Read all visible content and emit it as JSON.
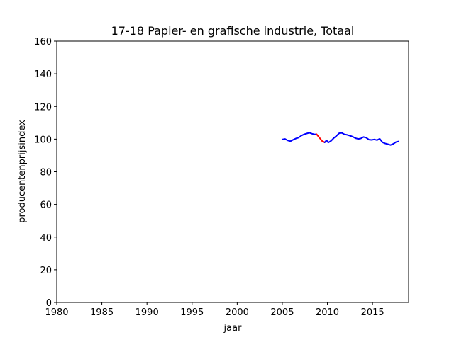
{
  "chart_data": {
    "type": "line",
    "title": "17-18 Papier- en grafische industrie, Totaal",
    "xlabel": "jaar",
    "ylabel": "producentenprijsindex",
    "xlim": [
      1980,
      2019
    ],
    "ylim": [
      0,
      160
    ],
    "xticks": [
      1980,
      1985,
      1990,
      1995,
      2000,
      2005,
      2010,
      2015
    ],
    "yticks": [
      0,
      20,
      40,
      60,
      80,
      100,
      120,
      140,
      160
    ],
    "grid": false,
    "series": [
      {
        "color": "#0000ff",
        "x": [
          2005.0,
          2005.3,
          2005.6,
          2005.9,
          2006.2,
          2006.5,
          2006.8,
          2007.1,
          2007.4,
          2007.7,
          2008.0,
          2008.3,
          2008.6,
          2008.8
        ],
        "y": [
          99.8,
          100.1,
          99.2,
          98.7,
          99.6,
          100.4,
          100.9,
          102.1,
          102.9,
          103.4,
          103.9,
          103.3,
          102.9,
          103.0
        ]
      },
      {
        "color": "#ff0000",
        "x": [
          2008.8,
          2009.1,
          2009.4,
          2009.7
        ],
        "y": [
          103.0,
          101.0,
          98.9,
          98.0
        ]
      },
      {
        "color": "#0000ff",
        "x": [
          2009.7,
          2009.9,
          2010.1,
          2010.4,
          2010.7,
          2011.0,
          2011.3,
          2011.6,
          2011.9,
          2012.2,
          2012.5,
          2012.8,
          2013.1,
          2013.4,
          2013.7,
          2014.0,
          2014.3,
          2014.6,
          2014.9,
          2015.2,
          2015.5,
          2015.8,
          2016.1,
          2016.4,
          2016.7,
          2017.0,
          2017.3,
          2017.6,
          2017.9
        ],
        "y": [
          98.0,
          99.3,
          97.9,
          98.9,
          100.6,
          102.0,
          103.6,
          103.8,
          102.9,
          102.6,
          102.1,
          101.5,
          100.6,
          100.1,
          100.4,
          101.3,
          100.9,
          99.7,
          99.5,
          99.8,
          99.4,
          100.2,
          98.1,
          97.4,
          96.9,
          96.4,
          97.1,
          98.2,
          98.6
        ]
      }
    ]
  }
}
